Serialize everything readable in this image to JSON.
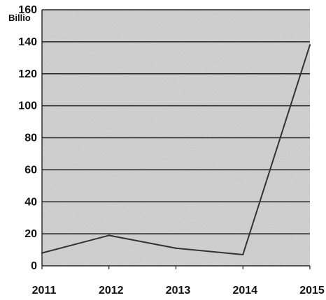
{
  "chart_data": {
    "type": "line",
    "title": "",
    "xlabel": "",
    "ylabel": "Billio",
    "categories": [
      "2011",
      "2012",
      "2013",
      "2014",
      "2015"
    ],
    "series": [
      {
        "values": [
          8,
          19,
          11,
          7,
          138
        ]
      }
    ],
    "ylim": [
      0,
      160
    ],
    "yticks": [
      0,
      20,
      40,
      60,
      80,
      100,
      120,
      140,
      160
    ],
    "grid": true,
    "legend": "none",
    "colors": {
      "line": "#333333",
      "grid": "#222222",
      "plot_background": "#d6d6d6",
      "text": "#111111"
    }
  }
}
